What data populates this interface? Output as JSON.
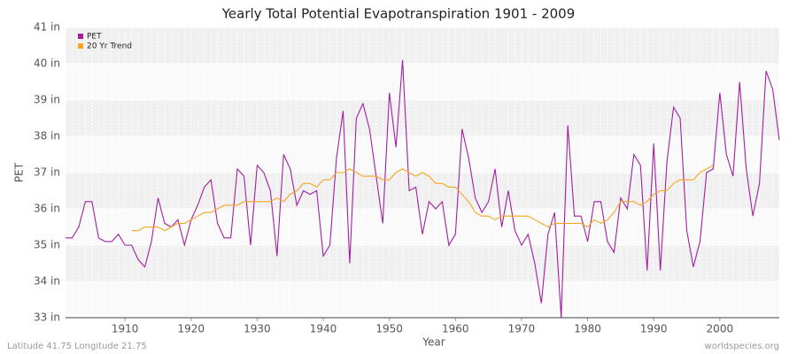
{
  "chart_data": {
    "type": "line",
    "title": "Yearly Total Potential Evapotranspiration 1901 - 2009",
    "x_label": "Year",
    "y_label": "PET",
    "footer_left": "Latitude 41.75 Longitude 21.75",
    "footer_right": "worldspecies.org",
    "x": [
      1901,
      1902,
      1903,
      1904,
      1905,
      1906,
      1907,
      1908,
      1909,
      1910,
      1911,
      1912,
      1913,
      1914,
      1915,
      1916,
      1917,
      1918,
      1919,
      1920,
      1921,
      1922,
      1923,
      1924,
      1925,
      1926,
      1927,
      1928,
      1929,
      1930,
      1931,
      1932,
      1933,
      1934,
      1935,
      1936,
      1937,
      1938,
      1939,
      1940,
      1941,
      1942,
      1943,
      1944,
      1945,
      1946,
      1947,
      1948,
      1949,
      1950,
      1951,
      1952,
      1953,
      1954,
      1955,
      1956,
      1957,
      1958,
      1959,
      1960,
      1961,
      1962,
      1963,
      1964,
      1965,
      1966,
      1967,
      1968,
      1969,
      1970,
      1971,
      1972,
      1973,
      1974,
      1975,
      1976,
      1977,
      1978,
      1979,
      1980,
      1981,
      1982,
      1983,
      1984,
      1985,
      1986,
      1987,
      1988,
      1989,
      1990,
      1991,
      1992,
      1993,
      1994,
      1995,
      1996,
      1997,
      1998,
      1999,
      2000,
      2001,
      2002,
      2003,
      2004,
      2005,
      2006,
      2007,
      2008,
      2009
    ],
    "series": [
      {
        "name": "PET",
        "color": "#a020a0",
        "values": [
          35.2,
          35.2,
          35.5,
          36.2,
          36.2,
          35.2,
          35.1,
          35.1,
          35.3,
          35.0,
          35.0,
          34.6,
          34.4,
          35.1,
          36.3,
          35.6,
          35.5,
          35.7,
          35.0,
          35.7,
          36.1,
          36.6,
          36.8,
          35.6,
          35.2,
          35.2,
          37.1,
          36.9,
          35.0,
          37.2,
          37.0,
          36.5,
          34.7,
          37.5,
          37.1,
          36.1,
          36.5,
          36.4,
          36.5,
          34.7,
          35.0,
          37.4,
          38.7,
          34.5,
          38.5,
          38.9,
          38.2,
          36.9,
          35.6,
          39.2,
          37.7,
          40.1,
          36.5,
          36.6,
          35.3,
          36.2,
          36.0,
          36.2,
          35.0,
          35.3,
          38.2,
          37.4,
          36.3,
          35.9,
          36.2,
          37.1,
          35.5,
          36.5,
          35.4,
          35.0,
          35.3,
          34.5,
          33.4,
          35.3,
          35.9,
          33.0,
          38.3,
          35.8,
          35.8,
          35.1,
          36.2,
          36.2,
          35.1,
          34.8,
          36.3,
          36.0,
          37.5,
          37.2,
          34.3,
          37.8,
          34.3,
          37.3,
          38.8,
          38.5,
          35.4,
          34.4,
          35.1,
          37.0,
          37.1,
          39.2,
          37.5,
          36.9,
          39.5,
          37.1,
          35.8,
          36.7,
          39.8,
          39.3,
          37.9
        ]
      },
      {
        "name": "20 Yr Trend",
        "color": "#f5a623",
        "values": [
          null,
          null,
          null,
          null,
          null,
          null,
          null,
          null,
          null,
          null,
          35.4,
          35.4,
          35.5,
          35.5,
          35.5,
          35.4,
          35.5,
          35.6,
          35.6,
          35.7,
          35.8,
          35.9,
          35.9,
          36.0,
          36.1,
          36.1,
          36.1,
          36.2,
          36.2,
          36.2,
          36.2,
          36.2,
          36.3,
          36.2,
          36.4,
          36.5,
          36.7,
          36.7,
          36.6,
          36.8,
          36.8,
          37.0,
          37.0,
          37.1,
          37.0,
          36.9,
          36.9,
          36.9,
          36.8,
          36.8,
          37.0,
          37.1,
          37.0,
          36.9,
          37.0,
          36.9,
          36.7,
          36.7,
          36.6,
          36.6,
          36.4,
          36.2,
          35.9,
          35.8,
          35.8,
          35.7,
          35.8,
          35.8,
          35.8,
          35.8,
          35.8,
          35.7,
          35.6,
          35.5,
          35.6,
          35.6,
          35.6,
          35.6,
          35.6,
          35.5,
          35.7,
          35.6,
          35.7,
          35.9,
          36.2,
          36.2,
          36.2,
          36.1,
          36.2,
          36.4,
          36.5,
          36.5,
          36.7,
          36.8,
          36.8,
          36.8,
          37.0,
          37.1,
          37.2,
          null,
          null,
          null,
          null,
          null,
          null,
          null,
          null,
          null,
          null
        ]
      }
    ],
    "xlim": [
      1901,
      2009
    ],
    "xticks": [
      1910,
      1920,
      1930,
      1940,
      1950,
      1960,
      1970,
      1980,
      1990,
      2000
    ],
    "ylim": [
      33,
      41
    ],
    "yticks": [
      {
        "value": 33,
        "label": "33 in"
      },
      {
        "value": 34,
        "label": "34 in"
      },
      {
        "value": 35,
        "label": "35 in"
      },
      {
        "value": 36,
        "label": "36 in"
      },
      {
        "value": 37,
        "label": "37 in"
      },
      {
        "value": 38,
        "label": "38 in"
      },
      {
        "value": 39,
        "label": "39 in"
      },
      {
        "value": 40,
        "label": "40 in"
      },
      {
        "value": 41,
        "label": "41 in"
      }
    ],
    "grid": true,
    "legend": "top-left"
  }
}
